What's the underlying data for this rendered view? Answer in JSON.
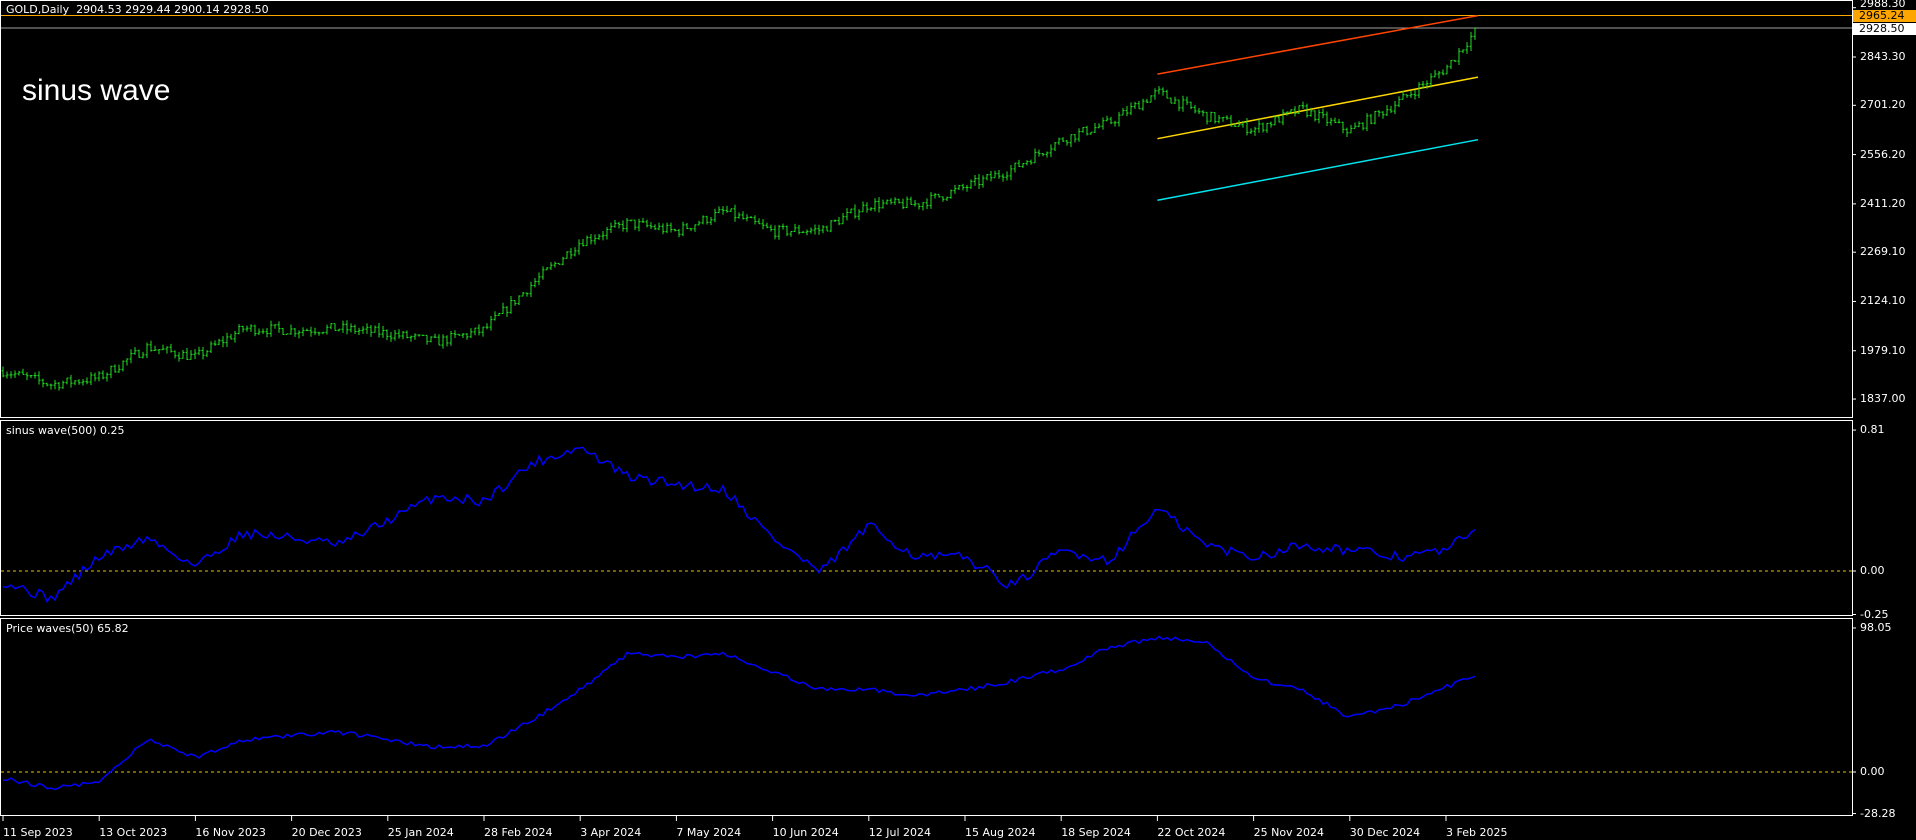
{
  "header": {
    "symbol": "GOLD,Daily",
    "ohlc": "2904.53 2929.44 2900.14 2928.50"
  },
  "overlay_text": "sinus wave",
  "indicators": [
    {
      "label": "sinus wave(500) 0.25"
    },
    {
      "label": "Price waves(50) 65.82"
    }
  ],
  "colors": {
    "background": "#000000",
    "bars": "#22dd22",
    "sinus_line": "#0000ff",
    "price_waves_line": "#0000ff",
    "zero_line": "#e6c000",
    "channel_upper": "#ff4500",
    "channel_mid": "#ffd700",
    "channel_lower": "#00e5ee",
    "level_orange": "#ffa500",
    "level_bid": "#a0a0a0"
  },
  "price_axis": {
    "ticks": [
      "2988.30",
      "2843.30",
      "2701.20",
      "2556.20",
      "2411.20",
      "2269.10",
      "2124.10",
      "1979.10",
      "1837.00"
    ],
    "tag_orange": "2965.24",
    "tag_bid": "2928.50"
  },
  "date_axis": [
    "11 Sep 2023",
    "13 Oct 2023",
    "16 Nov 2023",
    "20 Dec 2023",
    "25 Jan 2024",
    "28 Feb 2024",
    "3 Apr 2024",
    "7 May 2024",
    "10 Jun 2024",
    "12 Jul 2024",
    "15 Aug 2024",
    "18 Sep 2024",
    "22 Oct 2024",
    "25 Nov 2024",
    "30 Dec 2024",
    "3 Feb 2025"
  ],
  "chart_data": [
    {
      "type": "bar",
      "title": "GOLD,Daily",
      "x": [
        "2023-09-11",
        "2023-09-28",
        "2023-10-13",
        "2023-10-30",
        "2023-11-16",
        "2023-12-03",
        "2023-12-20",
        "2024-01-06",
        "2024-01-25",
        "2024-02-11",
        "2024-02-28",
        "2024-03-16",
        "2024-04-03",
        "2024-04-20",
        "2024-05-07",
        "2024-05-24",
        "2024-06-10",
        "2024-06-26",
        "2024-07-12",
        "2024-07-29",
        "2024-08-15",
        "2024-09-01",
        "2024-09-18",
        "2024-10-05",
        "2024-10-22",
        "2024-11-08",
        "2024-11-25",
        "2024-12-12",
        "2024-12-30",
        "2025-01-16",
        "2025-02-03",
        "2025-02-11"
      ],
      "close": [
        1920,
        1880,
        1900,
        1990,
        1960,
        2045,
        2040,
        2045,
        2030,
        2005,
        2040,
        2175,
        2300,
        2355,
        2330,
        2390,
        2330,
        2335,
        2410,
        2410,
        2460,
        2515,
        2600,
        2650,
        2740,
        2670,
        2630,
        2690,
        2625,
        2710,
        2810,
        2928.5
      ],
      "ylim": [
        1800,
        2995
      ],
      "channel": [
        {
          "name": "upper",
          "from": [
            "2024-10-22",
            2793
          ],
          "to": [
            "2025-02-11",
            2965
          ]
        },
        {
          "name": "middle",
          "from": [
            "2024-10-22",
            2603
          ],
          "to": [
            "2025-02-11",
            2784
          ]
        },
        {
          "name": "lower",
          "from": [
            "2024-10-22",
            2422
          ],
          "to": [
            "2025-02-11",
            2600
          ]
        }
      ],
      "levels": [
        2965.24,
        2928.5
      ]
    },
    {
      "type": "line",
      "title": "sinus wave(500) 0.25",
      "values": [
        -0.06,
        -0.16,
        0.08,
        0.19,
        0.03,
        0.22,
        0.19,
        0.15,
        0.29,
        0.43,
        0.4,
        0.62,
        0.71,
        0.54,
        0.5,
        0.47,
        0.19,
        -0.01,
        0.26,
        0.08,
        0.08,
        -0.09,
        0.12,
        0.06,
        0.36,
        0.15,
        0.08,
        0.15,
        0.12,
        0.08,
        0.12,
        0.25
      ],
      "ylim": [
        -0.25,
        0.81
      ],
      "ticks": [
        "0.81",
        "0.00",
        "-0.25"
      ],
      "zero_line": 0
    },
    {
      "type": "line",
      "title": "Price waves(50) 65.82",
      "values": [
        -4,
        -11,
        -7,
        22,
        10,
        22,
        25,
        27,
        22,
        17,
        18,
        35,
        56,
        81,
        78,
        81,
        68,
        56,
        56,
        52,
        56,
        62,
        70,
        85,
        91,
        89,
        64,
        56,
        37,
        45,
        58,
        65.82
      ],
      "ylim": [
        -28.28,
        98.05
      ],
      "ticks": [
        "98.05",
        "0.00",
        "-28.28"
      ],
      "zero_line": 0
    }
  ]
}
